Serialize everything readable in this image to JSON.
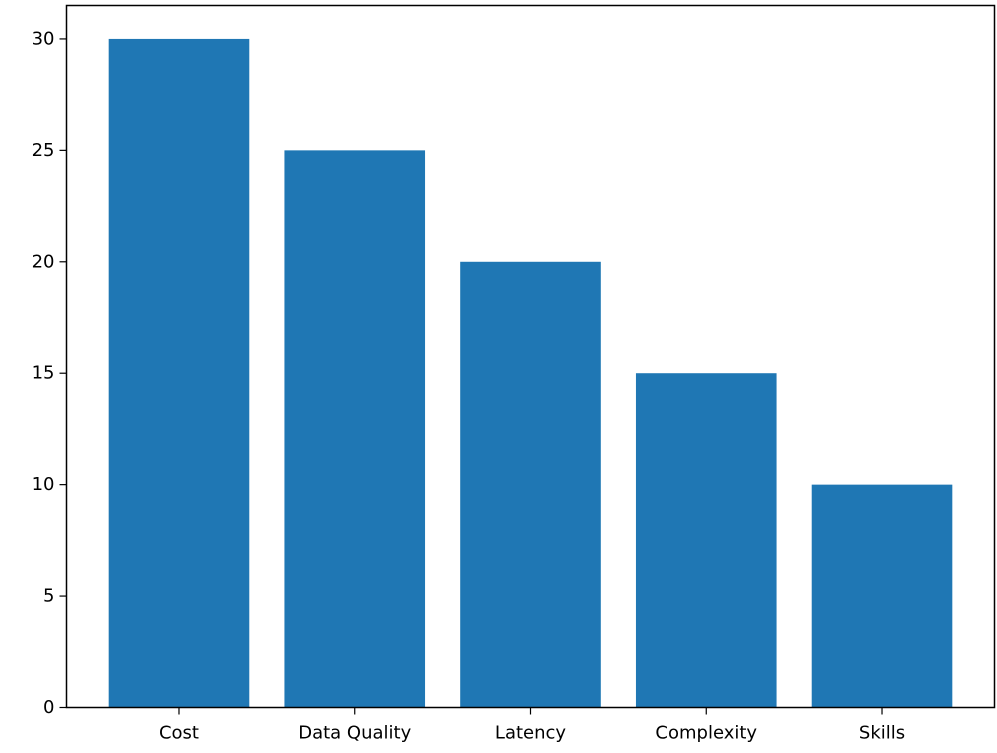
{
  "chart_data": {
    "type": "bar",
    "title": "",
    "xlabel": "",
    "ylabel": "",
    "categories": [
      "Cost",
      "Data Quality",
      "Latency",
      "Complexity",
      "Skills"
    ],
    "values": [
      30,
      25,
      20,
      15,
      10
    ],
    "ylim": [
      0,
      31.5
    ],
    "yticks": [
      0,
      5,
      10,
      15,
      20,
      25,
      30
    ],
    "bar_color": "#1f77b4",
    "grid": false,
    "legend": "none"
  }
}
